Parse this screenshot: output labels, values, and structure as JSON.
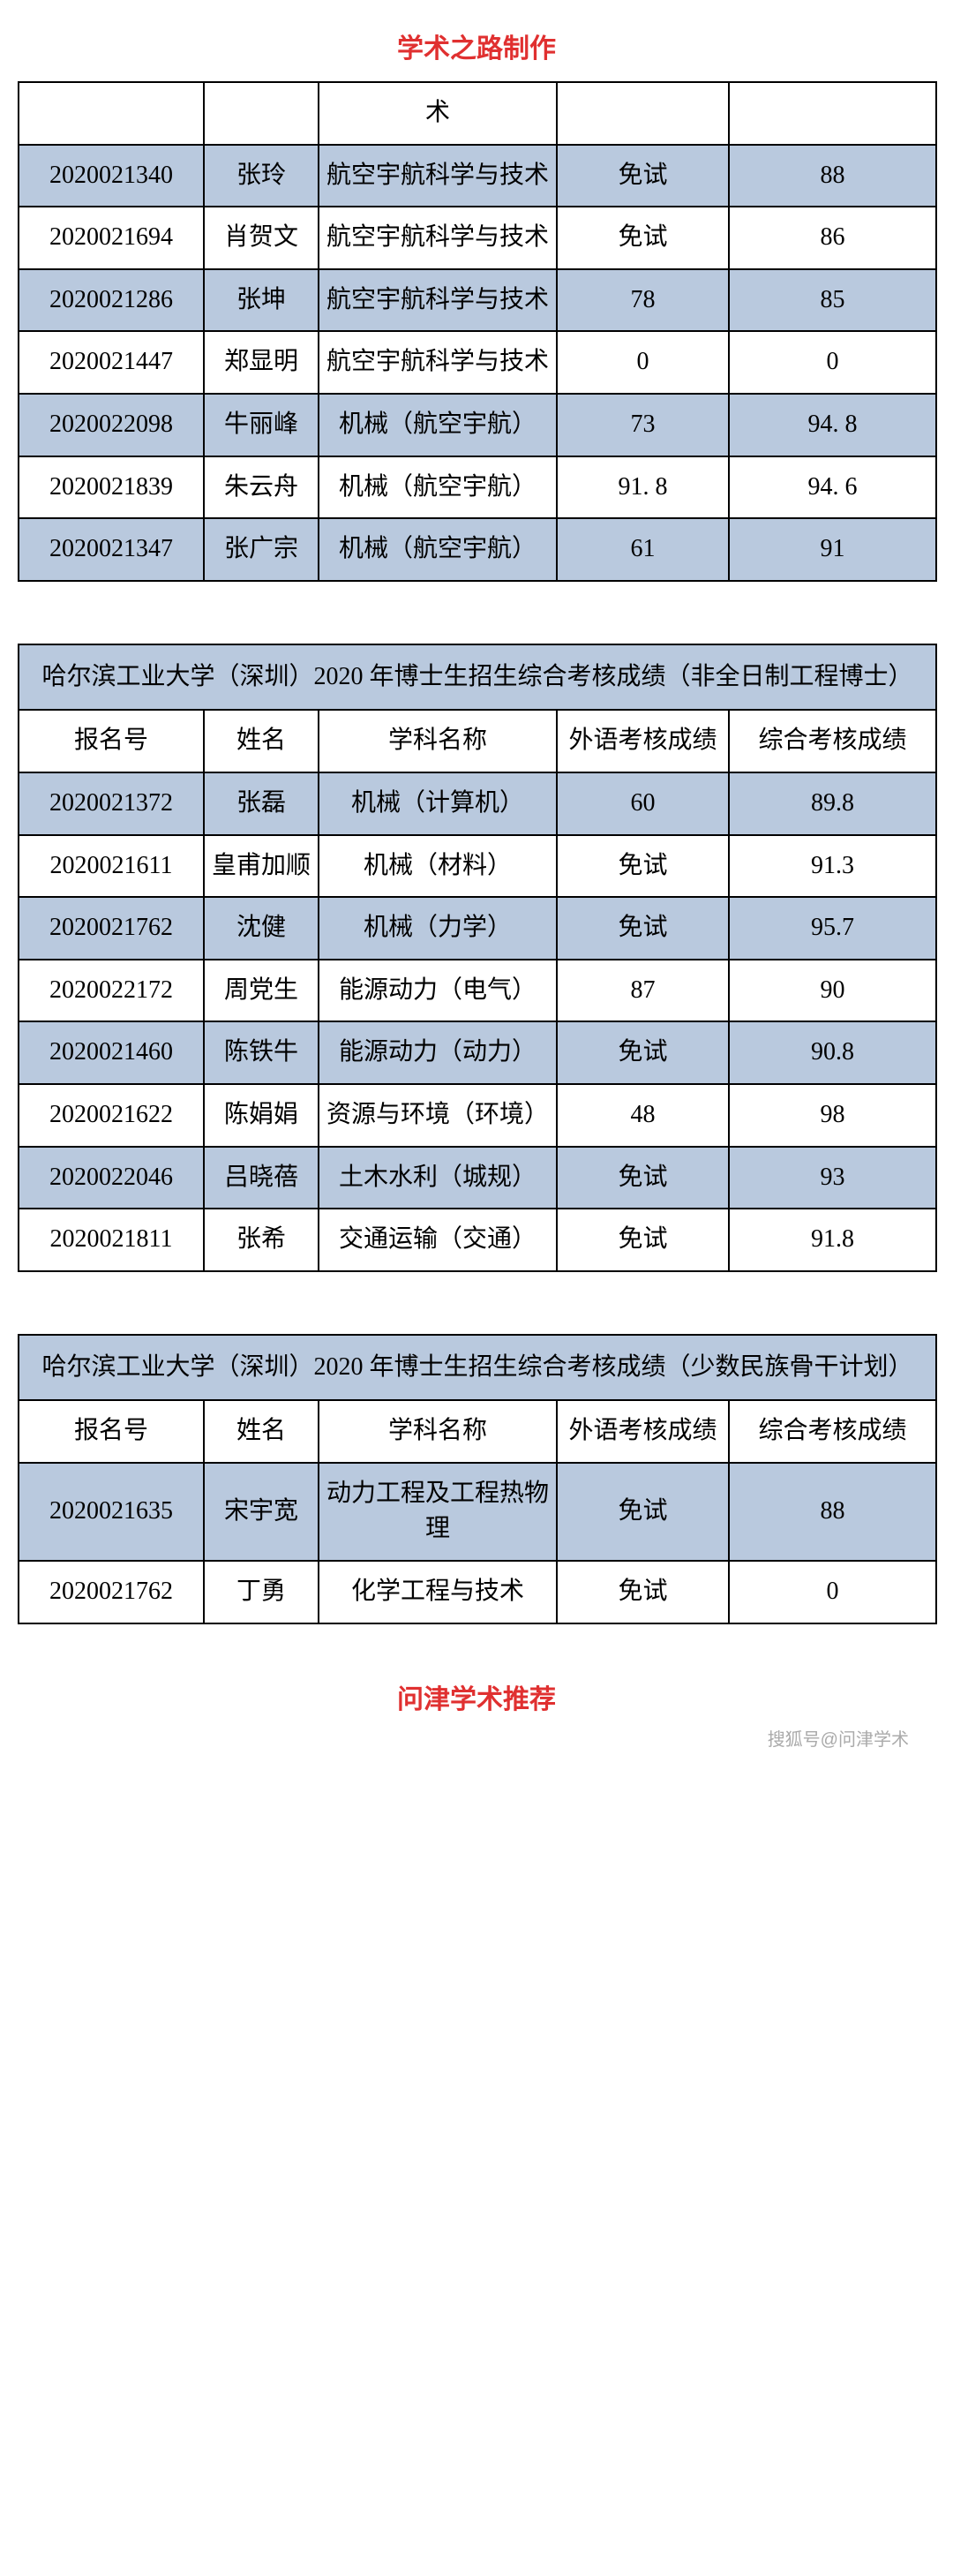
{
  "colors": {
    "accent_red": "#e03030",
    "shade_blue": "#b9c9de",
    "border": "#000000",
    "bg": "#ffffff"
  },
  "header_title": "学术之路制作",
  "footer_title": "问津学术推荐",
  "watermark": "搜狐号@问津学术",
  "table1": {
    "partial_header_cell": "术",
    "rows": [
      {
        "id": "2020021340",
        "name": "张玲",
        "subject": "航空宇航科学与技术",
        "lang": "免试",
        "score": "88",
        "shaded": true
      },
      {
        "id": "2020021694",
        "name": "肖贺文",
        "subject": "航空宇航科学与技术",
        "lang": "免试",
        "score": "86",
        "shaded": false
      },
      {
        "id": "2020021286",
        "name": "张坤",
        "subject": "航空宇航科学与技术",
        "lang": "78",
        "score": "85",
        "shaded": true
      },
      {
        "id": "2020021447",
        "name": "郑显明",
        "subject": "航空宇航科学与技术",
        "lang": "0",
        "score": "0",
        "shaded": false
      },
      {
        "id": "2020022098",
        "name": "牛丽峰",
        "subject": "机械（航空宇航）",
        "lang": "73",
        "score": "94. 8",
        "shaded": true
      },
      {
        "id": "2020021839",
        "name": "朱云舟",
        "subject": "机械（航空宇航）",
        "lang": "91. 8",
        "score": "94. 6",
        "shaded": false
      },
      {
        "id": "2020021347",
        "name": "张广宗",
        "subject": "机械（航空宇航）",
        "lang": "61",
        "score": "91",
        "shaded": true
      }
    ]
  },
  "table2": {
    "title": "哈尔滨工业大学（深圳）2020 年博士生招生综合考核成绩（非全日制工程博士）",
    "headers": [
      "报名号",
      "姓名",
      "学科名称",
      "外语考核成绩",
      "综合考核成绩"
    ],
    "rows": [
      {
        "id": "2020021372",
        "name": "张磊",
        "subject": "机械（计算机）",
        "lang": "60",
        "score": "89.8",
        "shaded": true
      },
      {
        "id": "2020021611",
        "name": "皇甫加顺",
        "subject": "机械（材料）",
        "lang": "免试",
        "score": "91.3",
        "shaded": false
      },
      {
        "id": "2020021762",
        "name": "沈健",
        "subject": "机械（力学）",
        "lang": "免试",
        "score": "95.7",
        "shaded": true
      },
      {
        "id": "2020022172",
        "name": "周党生",
        "subject": "能源动力（电气）",
        "lang": "87",
        "score": "90",
        "shaded": false
      },
      {
        "id": "2020021460",
        "name": "陈铁牛",
        "subject": "能源动力（动力）",
        "lang": "免试",
        "score": "90.8",
        "shaded": true
      },
      {
        "id": "2020021622",
        "name": "陈娟娟",
        "subject": "资源与环境（环境）",
        "lang": "48",
        "score": "98",
        "shaded": false
      },
      {
        "id": "2020022046",
        "name": "吕晓蓓",
        "subject": "土木水利（城规）",
        "lang": "免试",
        "score": "93",
        "shaded": true
      },
      {
        "id": "2020021811",
        "name": "张希",
        "subject": "交通运输（交通）",
        "lang": "免试",
        "score": "91.8",
        "shaded": false
      }
    ]
  },
  "table3": {
    "title": "哈尔滨工业大学（深圳）2020 年博士生招生综合考核成绩（少数民族骨干计划）",
    "headers": [
      "报名号",
      "姓名",
      "学科名称",
      "外语考核成绩",
      "综合考核成绩"
    ],
    "rows": [
      {
        "id": "2020021635",
        "name": "宋宇宽",
        "subject": "动力工程及工程热物理",
        "lang": "免试",
        "score": "88",
        "shaded": true
      },
      {
        "id": "2020021762",
        "name": "丁勇",
        "subject": "化学工程与技术",
        "lang": "免试",
        "score": "0",
        "shaded": false
      }
    ]
  }
}
